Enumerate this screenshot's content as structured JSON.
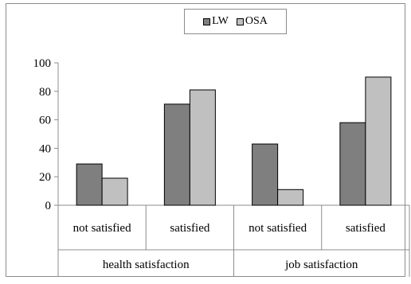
{
  "chart_data": {
    "type": "bar",
    "groups": [
      "health satisfaction",
      "job satisfaction"
    ],
    "categories": [
      "not satisfied",
      "satisfied",
      "not satisfied",
      "satisfied"
    ],
    "series": [
      {
        "name": "LW",
        "color": "#7f7f7f",
        "values": [
          29,
          71,
          43,
          58
        ]
      },
      {
        "name": "OSA",
        "color": "#c0c0c0",
        "values": [
          19,
          81,
          11,
          90
        ]
      }
    ],
    "yticks": [
      0,
      20,
      40,
      60,
      80,
      100
    ],
    "ylim": [
      0,
      100
    ],
    "legend": "top-center",
    "grid": false
  }
}
